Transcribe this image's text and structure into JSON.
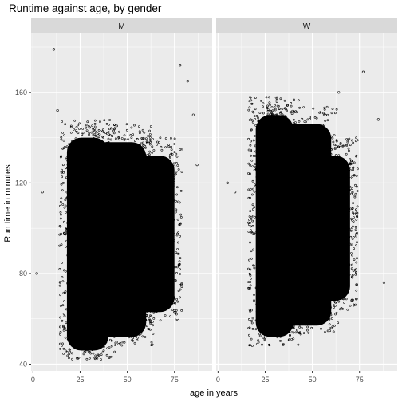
{
  "chart_data": {
    "type": "scatter",
    "title": "Runtime against age, by gender",
    "xlabel": "age in years",
    "ylabel": "Run time in minutes",
    "xlim": [
      -1,
      95
    ],
    "ylim": [
      37,
      186
    ],
    "x_ticks": [
      0,
      25,
      50,
      75
    ],
    "y_ticks": [
      40,
      80,
      120,
      160
    ],
    "grid": true,
    "legend": "none",
    "point_color": "#000000",
    "panel_background": "#EBEBEB",
    "strip_background": "#D9D9D9",
    "panels": [
      {
        "name": "M",
        "density_regions": [
          {
            "age_min": 18,
            "age_max": 40,
            "runtime_min": 46,
            "runtime_max": 140
          },
          {
            "age_min": 25,
            "age_max": 60,
            "runtime_min": 52,
            "runtime_max": 138
          },
          {
            "age_min": 40,
            "age_max": 75,
            "runtime_min": 63,
            "runtime_max": 132
          }
        ],
        "outliers": [
          {
            "age": 11,
            "runtime": 179
          },
          {
            "age": 13,
            "runtime": 152
          },
          {
            "age": 5,
            "runtime": 116
          },
          {
            "age": 2,
            "runtime": 80
          },
          {
            "age": 82,
            "runtime": 165
          },
          {
            "age": 78,
            "runtime": 172
          },
          {
            "age": 87,
            "runtime": 128
          },
          {
            "age": 85,
            "runtime": 150
          }
        ]
      },
      {
        "name": "W",
        "density_regions": [
          {
            "age_min": 20,
            "age_max": 40,
            "runtime_min": 52,
            "runtime_max": 150
          },
          {
            "age_min": 25,
            "age_max": 60,
            "runtime_min": 57,
            "runtime_max": 146
          },
          {
            "age_min": 45,
            "age_max": 70,
            "runtime_min": 68,
            "runtime_max": 132
          }
        ],
        "outliers": [
          {
            "age": 9,
            "runtime": 116
          },
          {
            "age": 5,
            "runtime": 120
          },
          {
            "age": 77,
            "runtime": 169
          },
          {
            "age": 85,
            "runtime": 148
          },
          {
            "age": 88,
            "runtime": 76
          },
          {
            "age": 64,
            "runtime": 160
          }
        ]
      }
    ]
  }
}
